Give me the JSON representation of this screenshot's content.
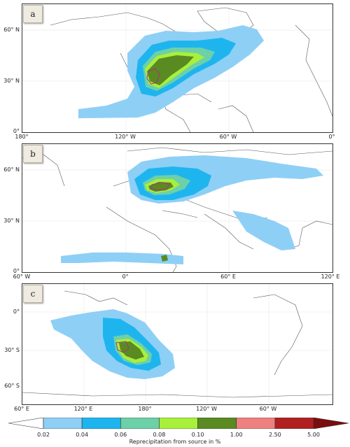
{
  "panels": [
    {
      "letter": "a",
      "lat_labels": [
        "60° N",
        "30° N",
        "0°"
      ],
      "lon_labels": [
        "180°",
        "120° W",
        "60° W",
        "0°"
      ]
    },
    {
      "letter": "b",
      "lat_labels": [
        "60° N",
        "30° N",
        "0°"
      ],
      "lon_labels": [
        "60° W",
        "0°",
        "60° E",
        "120° E"
      ]
    },
    {
      "letter": "c",
      "lat_labels": [
        "0°",
        "30° S",
        "60° S"
      ],
      "lon_labels": [
        "60° E",
        "120° E",
        "180°",
        "120° W",
        "60° W"
      ]
    }
  ],
  "colorbar": {
    "ticks": [
      "0.02",
      "0.04",
      "0.06",
      "0.08",
      "0.10",
      "1.00",
      "2.50",
      "5.00"
    ],
    "colors": [
      "#ffffff",
      "#8ecff6",
      "#1eb5ef",
      "#6dd0a8",
      "#a8f03a",
      "#5a8a22",
      "#ee8080",
      "#b02020",
      "#7a0d0d"
    ],
    "title": "Reprecipitation from source in %"
  }
}
